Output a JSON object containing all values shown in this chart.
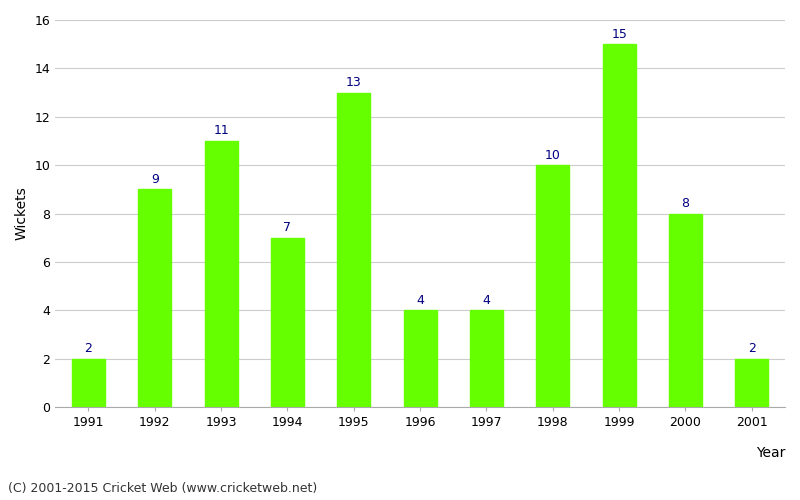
{
  "years": [
    1991,
    1992,
    1993,
    1994,
    1995,
    1996,
    1997,
    1998,
    1999,
    2000,
    2001
  ],
  "wickets": [
    2,
    9,
    11,
    7,
    13,
    4,
    4,
    10,
    15,
    8,
    2
  ],
  "bar_color": "#66ff00",
  "bar_edge_color": "#66ff00",
  "xlabel": "Year",
  "ylabel": "Wickets",
  "ylim": [
    0,
    16
  ],
  "yticks": [
    0,
    2,
    4,
    6,
    8,
    10,
    12,
    14,
    16
  ],
  "label_color": "#000080",
  "label_fontsize": 9,
  "axis_label_fontsize": 10,
  "tick_fontsize": 9,
  "grid_color": "#cccccc",
  "background_color": "#ffffff",
  "footer_text": "(C) 2001-2015 Cricket Web (www.cricketweb.net)",
  "footer_fontsize": 9,
  "footer_color": "#333333",
  "bar_width": 0.5
}
